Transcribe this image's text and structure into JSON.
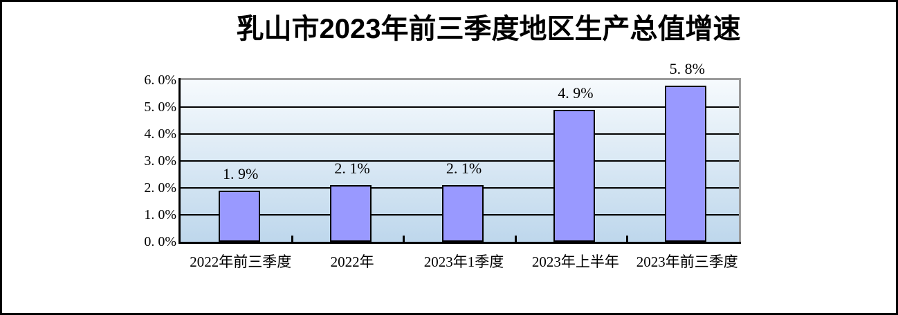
{
  "page": {
    "background_color": "#FFFFFF",
    "frame_border_color": "#000000"
  },
  "chart_data": {
    "type": "bar",
    "title": "乳山市2023年前三季度地区生产总值增速",
    "categories": [
      "2022年前三季度",
      "2022年",
      "2023年1季度",
      "2023年上半年",
      "2023年前三季度"
    ],
    "values": [
      1.9,
      2.1,
      2.1,
      4.9,
      5.8
    ],
    "data_labels": [
      "1. 9%",
      "2. 1%",
      "2. 1%",
      "4. 9%",
      "5. 8%"
    ],
    "y_axis": {
      "min": 0,
      "max": 6,
      "tick_step": 1,
      "tick_labels": [
        "0. 0%",
        "1. 0%",
        "2. 0%",
        "3. 0%",
        "4. 0%",
        "5. 0%",
        "6. 0%"
      ]
    },
    "xlabel": "",
    "ylabel": "",
    "grid": true,
    "legend": "none",
    "styles": {
      "bar_fill": "#9999FF",
      "bar_border": "#000000",
      "plot_bg_top": "#F6FAFD",
      "plot_bg_bottom": "#BED7EC",
      "gridline_color": "#000000",
      "axis_color": "#000000",
      "plot_border_color": "#9A9A9A",
      "text_color": "#000000"
    }
  }
}
